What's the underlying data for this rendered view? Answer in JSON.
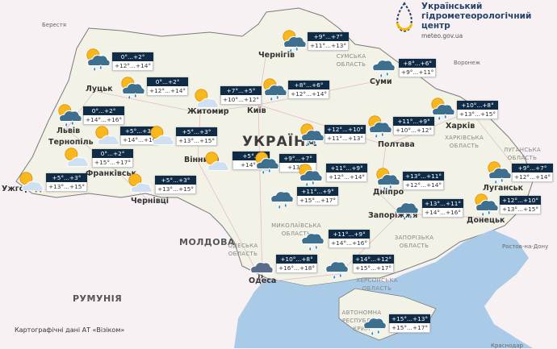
{
  "logo": {
    "name_lines": [
      "Український",
      "гідрометеорологічний",
      "центр"
    ],
    "url": "meteo.gov.ua",
    "colors": {
      "blue": "#23416b",
      "yellow": "#f5b800"
    }
  },
  "footer": "Картографічні дані АТ «Візіком»",
  "map_labels": {
    "ukraine": "УКРАЇНА",
    "moldova": "МОЛДОВА",
    "romania": "РУМУНІЯ",
    "beresteia": "Берестя",
    "voronezh": "Воронеж",
    "rostov": "Ростов-на-Дону",
    "krasnodar": "Краснодар",
    "lutsk": "Луцьк",
    "lviv": "Львів",
    "zhytomyr": "Житомир",
    "kyiv": "Київ",
    "chernihiv": "Чернігів",
    "sumy": "Суми",
    "poltava": "Полтава",
    "kharkiv": "Харків",
    "luhansk": "Луганськ",
    "dnipro": "Дніпро",
    "zaporizhzhia": "Запоріжжя",
    "donetsk": "Донецьк",
    "odesa": "Одеса",
    "vinnytsia": "Вінниця",
    "ternopil": "Тернопіль",
    "frankivsk": "Франківськ",
    "uzhhorod": "Ужгород",
    "chernivtsi": "Чернівці",
    "sumy_oblast": "СУМСЬКА ОБЛАСТЬ",
    "kharkiv_oblast": "ХАРКІВСЬКА ОБЛАСТЬ",
    "zaporizhzhia_oblast": "ЗАПОРІЗЬКА ОБЛАСТЬ",
    "mykolaiv_oblast": "МИКОЛАЇВСЬКА ОБЛАСТЬ",
    "odesa_oblast": "ОДЕСЬКА ОБЛАСТЬ",
    "kherson_oblast": "ХЕРСОНСЬКА ОБЛАСТЬ",
    "crimea": "АВТОНОМНА РЕСПУБЛІКА КРИМ",
    "luhansk_oblast": "ЛУГАНСЬКА ОБЛАСТЬ"
  },
  "icon_colors": {
    "sun": "#f7b71d",
    "light_cloud": "#cfe0f2",
    "rain_cloud": "#3f6f8f",
    "drop": "#2a8ad8",
    "card_header": "#0f2b45"
  },
  "forecasts": [
    {
      "region": "Volyn",
      "icon": "partly-cloudy-rain-icon",
      "night": "0°...+2°",
      "day": "+12°...+14°"
    },
    {
      "region": "Rivne",
      "icon": "partly-cloudy-rain-icon",
      "night": "0°...+2°",
      "day": "+12°...+14°"
    },
    {
      "region": "Zhytomyr",
      "icon": "partly-cloudy-icon",
      "night": "+7°...+5°",
      "day": "+10°...+12°"
    },
    {
      "region": "Chernihiv",
      "icon": "partly-cloudy-rain-icon",
      "night": "+9°...+7°",
      "day": "+11°...+13°"
    },
    {
      "region": "Sumy",
      "icon": "rain-icon",
      "night": "+8°...+6°",
      "day": "+9°...+11°"
    },
    {
      "region": "Kyiv",
      "icon": "partly-cloudy-rain-icon",
      "night": "+8°...+6°",
      "day": "+12°...+14°"
    },
    {
      "region": "Lviv",
      "icon": "partly-cloudy-rain-icon",
      "night": "0°...+2°",
      "day": "+14°...+16°"
    },
    {
      "region": "Ternopil",
      "icon": "partly-cloudy-icon",
      "night": "+5°...+3°",
      "day": "+14°...+16"
    },
    {
      "region": "Khmelnytskyi",
      "icon": "partly-cloudy-icon",
      "night": "+5°...+3°",
      "day": "+13°...+15°"
    },
    {
      "region": "Ivano-Frankivsk",
      "icon": "partly-cloudy-icon",
      "night": "0°...+2°",
      "day": "+15°...+17°"
    },
    {
      "region": "Uzhhorod",
      "icon": "partly-cloudy-icon",
      "night": "+5°...+3°",
      "day": "+13°...+15°"
    },
    {
      "region": "Chernivtsi",
      "icon": "partly-cloudy-icon",
      "night": "+5°...+3°",
      "day": "+13°...+15°"
    },
    {
      "region": "Vinnytsia",
      "icon": "partly-cloudy-icon",
      "night": "+5°...",
      "day": "+14°..."
    },
    {
      "region": "Cherkasy",
      "icon": "partly-cloudy-rain-icon",
      "night": "+9°...+7°",
      "day": "+13°..."
    },
    {
      "region": "Kirovohrad",
      "icon": "partly-cloudy-rain-icon",
      "night": "+11°...+9°",
      "day": "+12°...+14°"
    },
    {
      "region": "Cherkasy-east",
      "icon": "partly-cloudy-rain-icon",
      "night": "+12°...+10°",
      "day": "+11°...+13°"
    },
    {
      "region": "Poltava",
      "icon": "partly-cloudy-rain-icon",
      "night": "+11°...+9°",
      "day": "+10°...+12°"
    },
    {
      "region": "Kharkiv",
      "icon": "partly-cloudy-rain-icon",
      "night": "+10°...+8°",
      "day": "+13°...+15°"
    },
    {
      "region": "Luhansk",
      "icon": "partly-cloudy-rain-icon",
      "night": "+9°...+7°",
      "day": "+12°...+14°"
    },
    {
      "region": "Dnipro",
      "icon": "partly-cloudy-rain-icon",
      "night": "+13°...+11°",
      "day": "+12°...+14°"
    },
    {
      "region": "Zaporizhzhia",
      "icon": "rain-icon",
      "night": "+13°...+11°",
      "day": "+14°...+16°"
    },
    {
      "region": "Donetsk",
      "icon": "partly-cloudy-rain-icon",
      "night": "+12°...+10°",
      "day": "+13°...+15°"
    },
    {
      "region": "Kropyvnytskyi",
      "icon": "rain-icon",
      "night": "+11°...+9°",
      "day": "+15°...+17°"
    },
    {
      "region": "Mykolaiv",
      "icon": "rain-icon",
      "night": "+11°...+9°",
      "day": "+14°...+16°"
    },
    {
      "region": "Odesa",
      "icon": "drizzle-icon",
      "night": "+10°...+8°",
      "day": "+16°...+18°"
    },
    {
      "region": "Kherson",
      "icon": "rain-icon",
      "night": "+14°...+12°",
      "day": "+15°...+17°"
    },
    {
      "region": "Crimea",
      "icon": "rain-icon",
      "night": "+15°...+13°",
      "day": "+15°...+17°"
    }
  ]
}
